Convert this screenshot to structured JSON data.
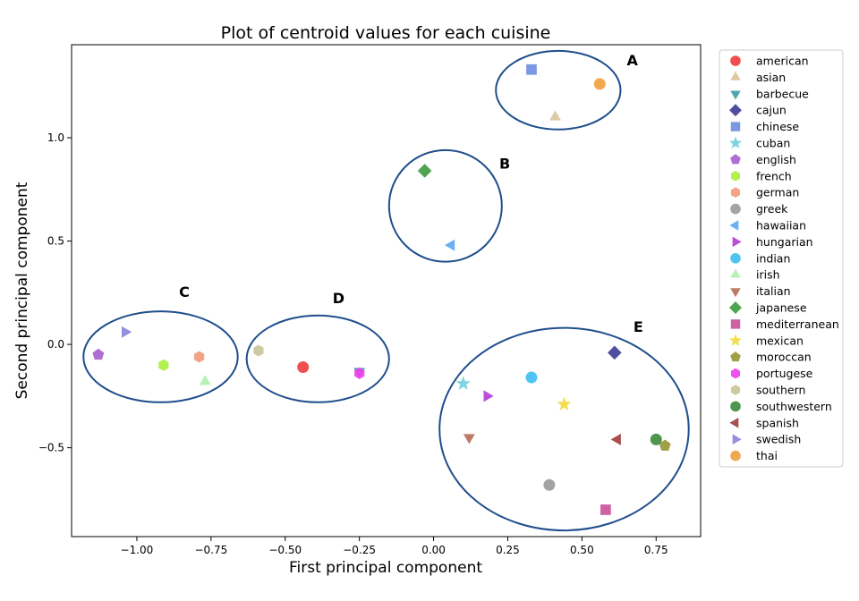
{
  "chart_data": {
    "type": "scatter",
    "title": "Plot of centroid values for each cuisine",
    "xlabel": "First principal component",
    "ylabel": "Second principal component",
    "xlim": [
      -1.22,
      0.9
    ],
    "ylim": [
      -0.93,
      1.45
    ],
    "xticks": [
      -1.0,
      -0.75,
      -0.5,
      -0.25,
      0.0,
      0.25,
      0.5,
      0.75
    ],
    "xtick_labels": [
      "−1.00",
      "−0.75",
      "−0.50",
      "−0.25",
      "0.00",
      "0.25",
      "0.50",
      "0.75"
    ],
    "yticks": [
      -0.5,
      0.0,
      0.5,
      1.0
    ],
    "ytick_labels": [
      "−0.5",
      "0.0",
      "0.5",
      "1.0"
    ],
    "grid": false,
    "legend_position": "outside-right",
    "series": [
      {
        "name": "american",
        "marker": "circle",
        "color": "#f03c3c",
        "x": -0.44,
        "y": -0.11
      },
      {
        "name": "asian",
        "marker": "triangle-up",
        "color": "#d9c39a",
        "x": 0.41,
        "y": 1.1
      },
      {
        "name": "barbecue",
        "marker": "triangle-down",
        "color": "#3a9ea5",
        "x": -0.25,
        "y": -0.13
      },
      {
        "name": "cajun",
        "marker": "diamond",
        "color": "#3c3c96",
        "x": 0.61,
        "y": -0.04
      },
      {
        "name": "chinese",
        "marker": "square",
        "color": "#6e8ddf",
        "x": 0.33,
        "y": 1.33
      },
      {
        "name": "cuban",
        "marker": "star",
        "color": "#6fd0de",
        "x": 0.1,
        "y": -0.19
      },
      {
        "name": "english",
        "marker": "pentagon",
        "color": "#a55fce",
        "x": -1.13,
        "y": -0.05
      },
      {
        "name": "french",
        "marker": "hexagon",
        "color": "#a8f03c",
        "x": -0.91,
        "y": -0.1
      },
      {
        "name": "german",
        "marker": "hexagon",
        "color": "#f29a78",
        "x": -0.79,
        "y": -0.06
      },
      {
        "name": "greek",
        "marker": "circle",
        "color": "#9a9a9a",
        "x": 0.39,
        "y": -0.68
      },
      {
        "name": "hawaiian",
        "marker": "triangle-left",
        "color": "#5aa8f0",
        "x": 0.06,
        "y": 0.48
      },
      {
        "name": "hungarian",
        "marker": "triangle-right",
        "color": "#b43cd2",
        "x": 0.18,
        "y": -0.25
      },
      {
        "name": "indian",
        "marker": "circle",
        "color": "#3cc0f0",
        "x": 0.33,
        "y": -0.16
      },
      {
        "name": "irish",
        "marker": "triangle-up",
        "color": "#b0f0aa",
        "x": -0.77,
        "y": -0.18
      },
      {
        "name": "italian",
        "marker": "triangle-down",
        "color": "#b46e5a",
        "x": 0.12,
        "y": -0.45
      },
      {
        "name": "japanese",
        "marker": "diamond",
        "color": "#3c9a3c",
        "x": -0.03,
        "y": 0.84
      },
      {
        "name": "mediterranean",
        "marker": "square",
        "color": "#c8509a",
        "x": 0.58,
        "y": -0.8
      },
      {
        "name": "mexican",
        "marker": "star",
        "color": "#f0dc3c",
        "x": 0.44,
        "y": -0.29
      },
      {
        "name": "moroccan",
        "marker": "pentagon",
        "color": "#969632",
        "x": 0.78,
        "y": -0.49
      },
      {
        "name": "portugese",
        "marker": "hexagon",
        "color": "#f03cf0",
        "x": -0.25,
        "y": -0.14
      },
      {
        "name": "southern",
        "marker": "hexagon",
        "color": "#c8c396",
        "x": -0.59,
        "y": -0.03
      },
      {
        "name": "southwestern",
        "marker": "circle",
        "color": "#3c8a3c",
        "x": 0.75,
        "y": -0.46
      },
      {
        "name": "spanish",
        "marker": "triangle-left",
        "color": "#a03c3c",
        "x": 0.62,
        "y": -0.46
      },
      {
        "name": "swedish",
        "marker": "triangle-right",
        "color": "#8a82dc",
        "x": -1.04,
        "y": 0.06
      },
      {
        "name": "thai",
        "marker": "circle",
        "color": "#f0a03c",
        "x": 0.56,
        "y": 1.26
      }
    ],
    "annotations": [
      {
        "label": "A",
        "cx": 0.42,
        "cy": 1.23,
        "rx": 0.21,
        "ry": 0.19,
        "label_x": 0.67,
        "label_y": 1.35
      },
      {
        "label": "B",
        "cx": 0.04,
        "cy": 0.67,
        "rx": 0.19,
        "ry": 0.27,
        "label_x": 0.24,
        "label_y": 0.85
      },
      {
        "label": "C",
        "cx": -0.92,
        "cy": -0.06,
        "rx": 0.26,
        "ry": 0.22,
        "label_x": -0.84,
        "label_y": 0.23
      },
      {
        "label": "D",
        "cx": -0.39,
        "cy": -0.07,
        "rx": 0.24,
        "ry": 0.21,
        "label_x": -0.32,
        "label_y": 0.2
      },
      {
        "label": "E",
        "cx": 0.44,
        "cy": -0.41,
        "rx": 0.42,
        "ry": 0.49,
        "label_x": 0.69,
        "label_y": 0.06
      }
    ],
    "annotation_color": "#1f4e8c"
  }
}
